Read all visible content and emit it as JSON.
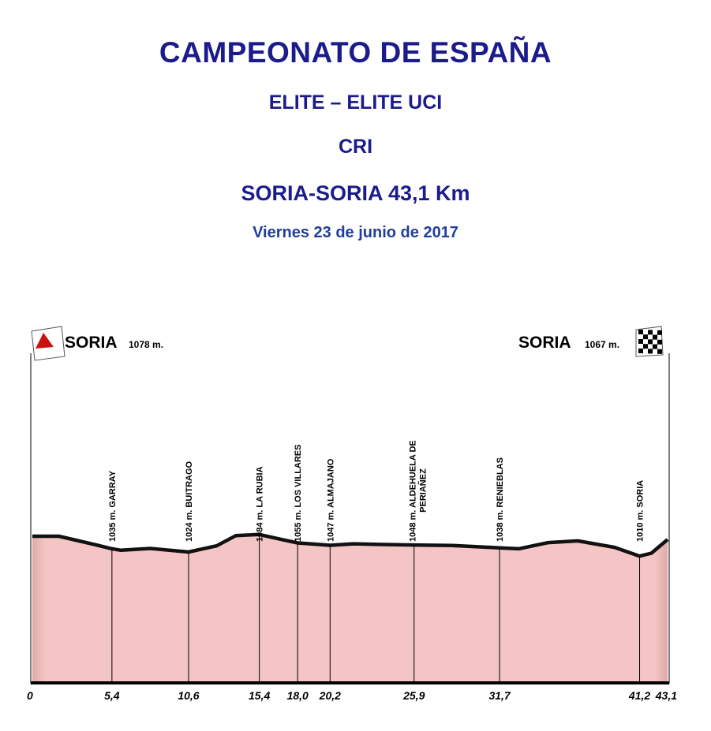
{
  "header": {
    "title": "CAMPEONATO DE ESPAÑA",
    "category": "ELITE – ELITE UCI",
    "stage_type": "CRI",
    "route": "SORIA-SORIA 43,1 Km",
    "date": "Viernes 23 de junio de 2017"
  },
  "start": {
    "town": "SORIA",
    "altitude": "1078 m."
  },
  "finish": {
    "town": "SORIA",
    "altitude": "1067 m."
  },
  "colors": {
    "title": "#1b1b8c",
    "date": "#1f3f9a",
    "fill": "#f5c4c4",
    "flag_start": "#cc1111"
  },
  "chart_data": {
    "type": "area",
    "x_unit": "km",
    "xlim": [
      0,
      43.1
    ],
    "km_ticks": [
      "0",
      "5,4",
      "10,6",
      "15,4",
      "18,0",
      "20,2",
      "25,9",
      "31,7",
      "41,2",
      "43,1"
    ],
    "profile": [
      {
        "km": 0,
        "alt": 1078
      },
      {
        "km": 1.8,
        "alt": 1078
      },
      {
        "km": 4.2,
        "alt": 1050
      },
      {
        "km": 5.4,
        "alt": 1035
      },
      {
        "km": 6.0,
        "alt": 1030
      },
      {
        "km": 8.0,
        "alt": 1036
      },
      {
        "km": 10.6,
        "alt": 1024
      },
      {
        "km": 12.5,
        "alt": 1045
      },
      {
        "km": 13.8,
        "alt": 1080
      },
      {
        "km": 15.4,
        "alt": 1084
      },
      {
        "km": 16.8,
        "alt": 1068
      },
      {
        "km": 18.0,
        "alt": 1055
      },
      {
        "km": 20.2,
        "alt": 1047
      },
      {
        "km": 21.8,
        "alt": 1052
      },
      {
        "km": 23.5,
        "alt": 1050
      },
      {
        "km": 25.9,
        "alt": 1048
      },
      {
        "km": 28.5,
        "alt": 1046
      },
      {
        "km": 31.7,
        "alt": 1038
      },
      {
        "km": 33.0,
        "alt": 1035
      },
      {
        "km": 35.0,
        "alt": 1056
      },
      {
        "km": 37.0,
        "alt": 1062
      },
      {
        "km": 39.5,
        "alt": 1040
      },
      {
        "km": 41.2,
        "alt": 1010
      },
      {
        "km": 42.0,
        "alt": 1020
      },
      {
        "km": 43.1,
        "alt": 1067
      }
    ],
    "waypoints": [
      {
        "km": 5.4,
        "label": "1035 m. GARRAY"
      },
      {
        "km": 10.6,
        "label": "1024 m. BUITRAGO"
      },
      {
        "km": 15.4,
        "label": "1084 m. LA RUBIA"
      },
      {
        "km": 18.0,
        "label": "1055 m. LOS VILLARES"
      },
      {
        "km": 20.2,
        "label": "1047 m. ALMAJANO"
      },
      {
        "km": 25.9,
        "label": "1048 m. ALDEHUELA DE",
        "label2": "PERIAÑEZ"
      },
      {
        "km": 31.7,
        "label": "1038 m. RENIEBLAS"
      },
      {
        "km": 41.2,
        "label": "1010 m. SORIA"
      }
    ]
  }
}
